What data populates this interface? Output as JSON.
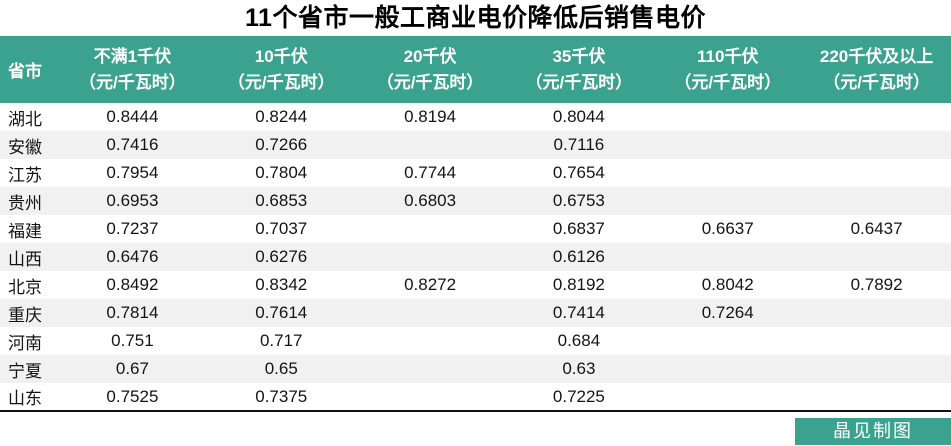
{
  "title": "11个省市一般工商业电价降低后销售电价",
  "colors": {
    "accent_teal": "#3aa28f",
    "stripe_gray": "#f1f1f1",
    "border_black": "#111111"
  },
  "table": {
    "province_header": "省市",
    "columns": [
      {
        "line1": "不满1千伏",
        "line2": "（元/千瓦时）"
      },
      {
        "line1": "10千伏",
        "line2": "（元/千瓦时）"
      },
      {
        "line1": "20千伏",
        "line2": "（元/千瓦时）"
      },
      {
        "line1": "35千伏",
        "line2": "（元/千瓦时）"
      },
      {
        "line1": "110千伏",
        "line2": "（元/千瓦时）"
      },
      {
        "line1": "220千伏及以上",
        "line2": "（元/千瓦时）"
      }
    ],
    "rows": [
      {
        "province": "湖北",
        "values": [
          "0.8444",
          "0.8244",
          "0.8194",
          "0.8044",
          "",
          ""
        ]
      },
      {
        "province": "安徽",
        "values": [
          "0.7416",
          "0.7266",
          "",
          "0.7116",
          "",
          ""
        ]
      },
      {
        "province": "江苏",
        "values": [
          "0.7954",
          "0.7804",
          "0.7744",
          "0.7654",
          "",
          ""
        ]
      },
      {
        "province": "贵州",
        "values": [
          "0.6953",
          "0.6853",
          "0.6803",
          "0.6753",
          "",
          ""
        ]
      },
      {
        "province": "福建",
        "values": [
          "0.7237",
          "0.7037",
          "",
          "0.6837",
          "0.6637",
          "0.6437"
        ]
      },
      {
        "province": "山西",
        "values": [
          "0.6476",
          "0.6276",
          "",
          "0.6126",
          "",
          ""
        ]
      },
      {
        "province": "北京",
        "values": [
          "0.8492",
          "0.8342",
          "0.8272",
          "0.8192",
          "0.8042",
          "0.7892"
        ]
      },
      {
        "province": "重庆",
        "values": [
          "0.7814",
          "0.7614",
          "",
          "0.7414",
          "0.7264",
          ""
        ]
      },
      {
        "province": "河南",
        "values": [
          "0.751",
          "0.717",
          "",
          "0.684",
          "",
          ""
        ]
      },
      {
        "province": "宁夏",
        "values": [
          "0.67",
          "0.65",
          "",
          "0.63",
          "",
          ""
        ]
      },
      {
        "province": "山东",
        "values": [
          "0.7525",
          "0.7375",
          "",
          "0.7225",
          "",
          ""
        ]
      }
    ]
  },
  "footer": {
    "credit": "晶见制图"
  },
  "chart_data": {
    "type": "table",
    "title": "11个省市一般工商业电价降低后销售电价",
    "unit": "元/千瓦时",
    "columns": [
      "省市",
      "不满1千伏（元/千瓦时）",
      "10千伏（元/千瓦时）",
      "20千伏（元/千瓦时）",
      "35千伏（元/千瓦时）",
      "110千伏（元/千瓦时）",
      "220千伏及以上（元/千瓦时）"
    ],
    "rows": [
      [
        "湖北",
        0.8444,
        0.8244,
        0.8194,
        0.8044,
        null,
        null
      ],
      [
        "安徽",
        0.7416,
        0.7266,
        null,
        0.7116,
        null,
        null
      ],
      [
        "江苏",
        0.7954,
        0.7804,
        0.7744,
        0.7654,
        null,
        null
      ],
      [
        "贵州",
        0.6953,
        0.6853,
        0.6803,
        0.6753,
        null,
        null
      ],
      [
        "福建",
        0.7237,
        0.7037,
        null,
        0.6837,
        0.6637,
        0.6437
      ],
      [
        "山西",
        0.6476,
        0.6276,
        null,
        0.6126,
        null,
        null
      ],
      [
        "北京",
        0.8492,
        0.8342,
        0.8272,
        0.8192,
        0.8042,
        0.7892
      ],
      [
        "重庆",
        0.7814,
        0.7614,
        null,
        0.7414,
        0.7264,
        null
      ],
      [
        "河南",
        0.751,
        0.717,
        null,
        0.684,
        null,
        null
      ],
      [
        "宁夏",
        0.67,
        0.65,
        null,
        0.63,
        null,
        null
      ],
      [
        "山东",
        0.7525,
        0.7375,
        null,
        0.7225,
        null,
        null
      ]
    ],
    "legend_position": "none",
    "grid": "row-stripes",
    "credit": "晶见制图"
  }
}
